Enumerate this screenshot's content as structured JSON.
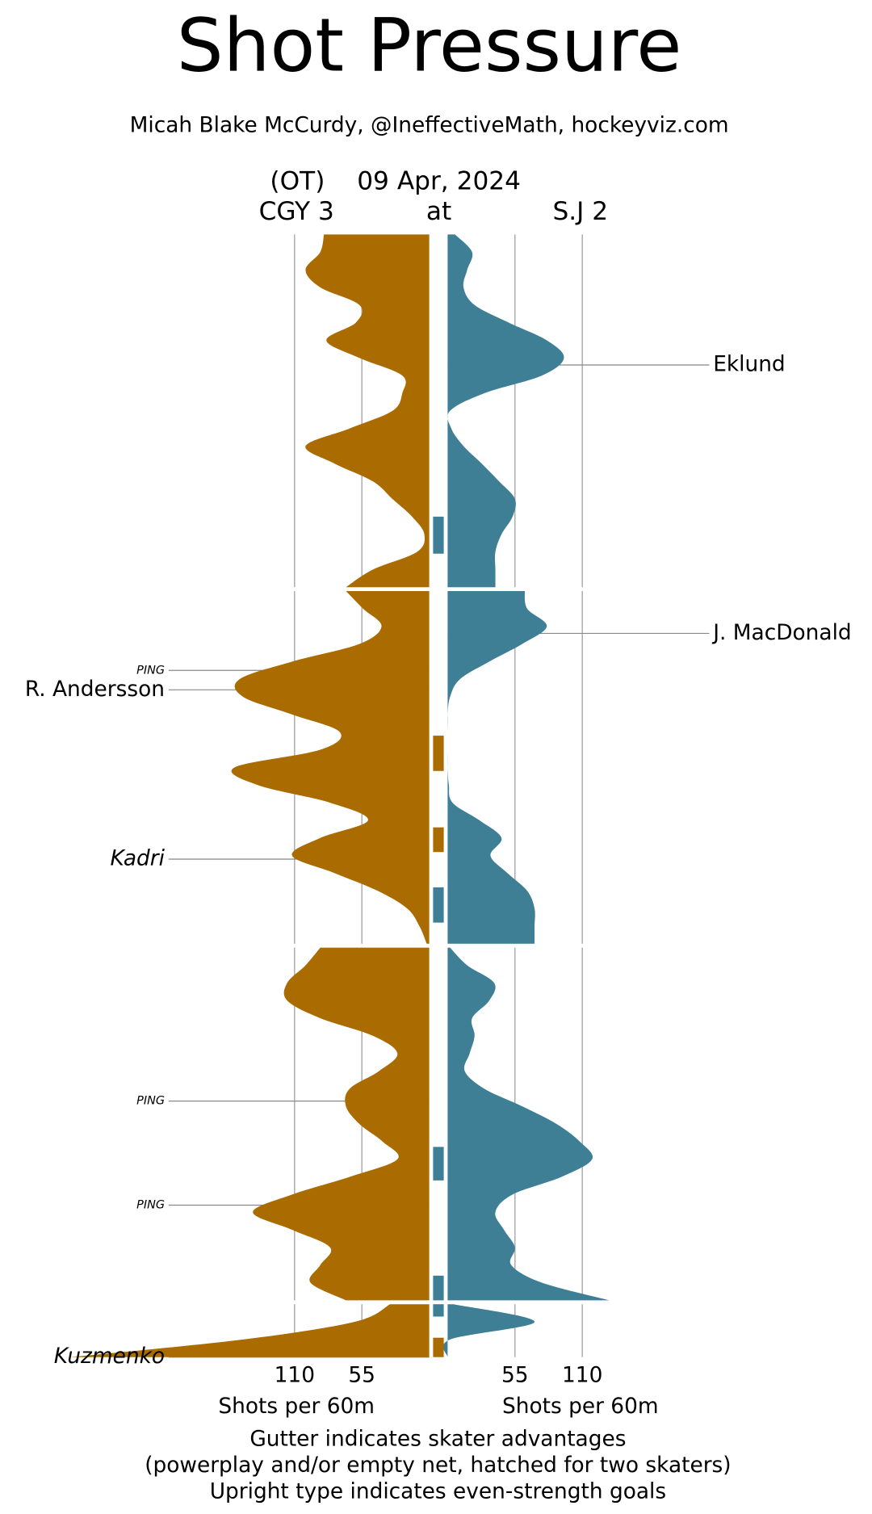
{
  "chart_data": {
    "type": "shot_pressure",
    "title": "Shot Pressure",
    "subtitle": "Micah Blake McCurdy, @IneffectiveMath, hockeyviz.com",
    "status": "(OT)",
    "date": "09 Apr, 2024",
    "away": "CGY 3",
    "at": "at",
    "home": "S.J 2",
    "xlabel": "Shots per 60m",
    "xlim": [
      0,
      110
    ],
    "xticks": [
      55,
      110
    ],
    "periods": [
      [
        0,
        20
      ],
      [
        20,
        40
      ],
      [
        40,
        60
      ],
      [
        60,
        63
      ]
    ],
    "x": [
      0,
      1,
      2,
      3,
      4,
      5,
      6,
      7,
      8,
      9,
      10,
      11,
      12,
      13,
      14,
      15,
      16,
      17,
      18,
      19,
      20,
      20,
      20,
      21,
      22,
      23,
      24,
      25,
      26,
      27,
      28,
      29,
      30,
      31,
      32,
      33,
      34,
      35,
      36,
      37,
      38,
      39,
      40,
      40,
      40,
      41,
      42,
      43,
      44,
      45,
      46,
      47,
      48,
      49,
      50,
      51,
      52,
      53,
      54,
      55,
      56,
      57,
      58,
      59,
      60,
      60,
      60,
      61,
      62,
      63
    ],
    "series": [
      {
        "name": "CGY",
        "side": "left",
        "color": "#aa6c00",
        "values": [
          86,
          89,
          101,
          89,
          57,
          60,
          84,
          57,
          22,
          22,
          30,
          65,
          101,
          77,
          46,
          30,
          14,
          4,
          10,
          46,
          68,
          null,
          68,
          54,
          39,
          57,
          112,
          155,
          152,
          112,
          73,
          89,
          159,
          140,
          81,
          50,
          89,
          112,
          77,
          42,
          18,
          8,
          2,
          null,
          89,
          101,
          116,
          116,
          89,
          46,
          26,
          41,
          65,
          68,
          57,
          38,
          26,
          65,
          112,
          144,
          112,
          81,
          89,
          97,
          68,
          null,
          32,
          61,
          152,
          293
        ]
      },
      {
        "name": "S.J",
        "side": "right",
        "color": "#3e7f96",
        "values": [
          6,
          20,
          16,
          13,
          22,
          50,
          81,
          95,
          77,
          30,
          2,
          3,
          13,
          28,
          42,
          55,
          53,
          44,
          39,
          39,
          39,
          null,
          63,
          65,
          81,
          61,
          34,
          10,
          2,
          0,
          0,
          0,
          0,
          1,
          4,
          26,
          44,
          35,
          49,
          65,
          71,
          71,
          71,
          null,
          2,
          16,
          38,
          34,
          20,
          22,
          18,
          14,
          30,
          61,
          89,
          108,
          118,
          93,
          53,
          39,
          46,
          55,
          52,
          77,
          132,
          null,
          5,
          71,
          2,
          0
        ]
      }
    ],
    "advantages": [
      {
        "team": 1,
        "start": 16.0,
        "end": 18.1
      },
      {
        "team": 0,
        "start": 28.2,
        "end": 30.2
      },
      {
        "team": 0,
        "start": 33.4,
        "end": 34.8
      },
      {
        "team": 1,
        "start": 36.8,
        "end": 38.8
      },
      {
        "team": 1,
        "start": 51.3,
        "end": 53.2
      },
      {
        "team": 1,
        "start": 58.6,
        "end": 60.7
      },
      {
        "team": 0,
        "start": 61.9,
        "end": 63.0
      }
    ],
    "annotations": [
      {
        "text": "Eklund",
        "team": 1,
        "minute": 7.4,
        "style": "upright"
      },
      {
        "text": "J. MacDonald",
        "team": 1,
        "minute": 22.4,
        "style": "upright"
      },
      {
        "text": "PING",
        "team": 0,
        "minute": 24.5,
        "style": "ping"
      },
      {
        "text": "R. Andersson",
        "team": 0,
        "minute": 25.6,
        "style": "upright"
      },
      {
        "text": "Kadri",
        "team": 0,
        "minute": 35.2,
        "style": "italic"
      },
      {
        "text": "PING",
        "team": 0,
        "minute": 48.7,
        "style": "ping"
      },
      {
        "text": "PING",
        "team": 0,
        "minute": 54.6,
        "style": "ping"
      },
      {
        "text": "Kuzmenko",
        "team": 0,
        "minute": 63.0,
        "style": "italic"
      }
    ],
    "notes": [
      "Gutter indicates skater advantages",
      "(powerplay and/or empty net, hatched for two skaters)",
      "Upright type indicates even-strength goals"
    ]
  }
}
